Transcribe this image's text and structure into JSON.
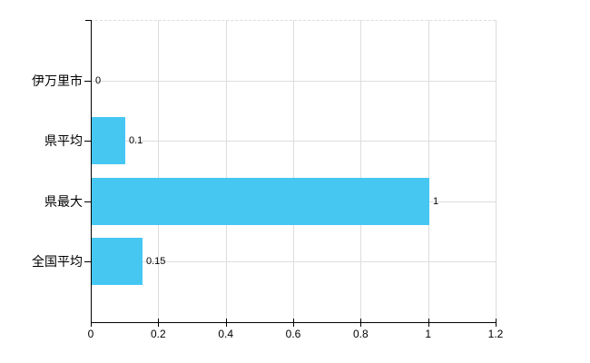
{
  "chart_data": {
    "type": "bar",
    "orientation": "horizontal",
    "title": "",
    "xlabel": "",
    "ylabel": "",
    "categories": [
      "伊万里市",
      "県平均",
      "県最大",
      "全国平均"
    ],
    "values": [
      0,
      0.1,
      1,
      0.15
    ],
    "value_labels": [
      "0",
      "0.1",
      "1",
      "0.15"
    ],
    "xlim": [
      0,
      1.2
    ],
    "x_tick_values": [
      0,
      0.2,
      0.4,
      0.6,
      0.8,
      1,
      1.2
    ],
    "x_tick_labels": [
      "0",
      "0.2",
      "0.4",
      "0.6",
      "0.8",
      "1",
      "1.2"
    ],
    "grid": true,
    "legend": false,
    "colors": {
      "bar": "#45C7F2",
      "axis": "#000000",
      "grid": "#DDDDDD",
      "text": "#000000",
      "background": "#FFFFFF"
    }
  }
}
